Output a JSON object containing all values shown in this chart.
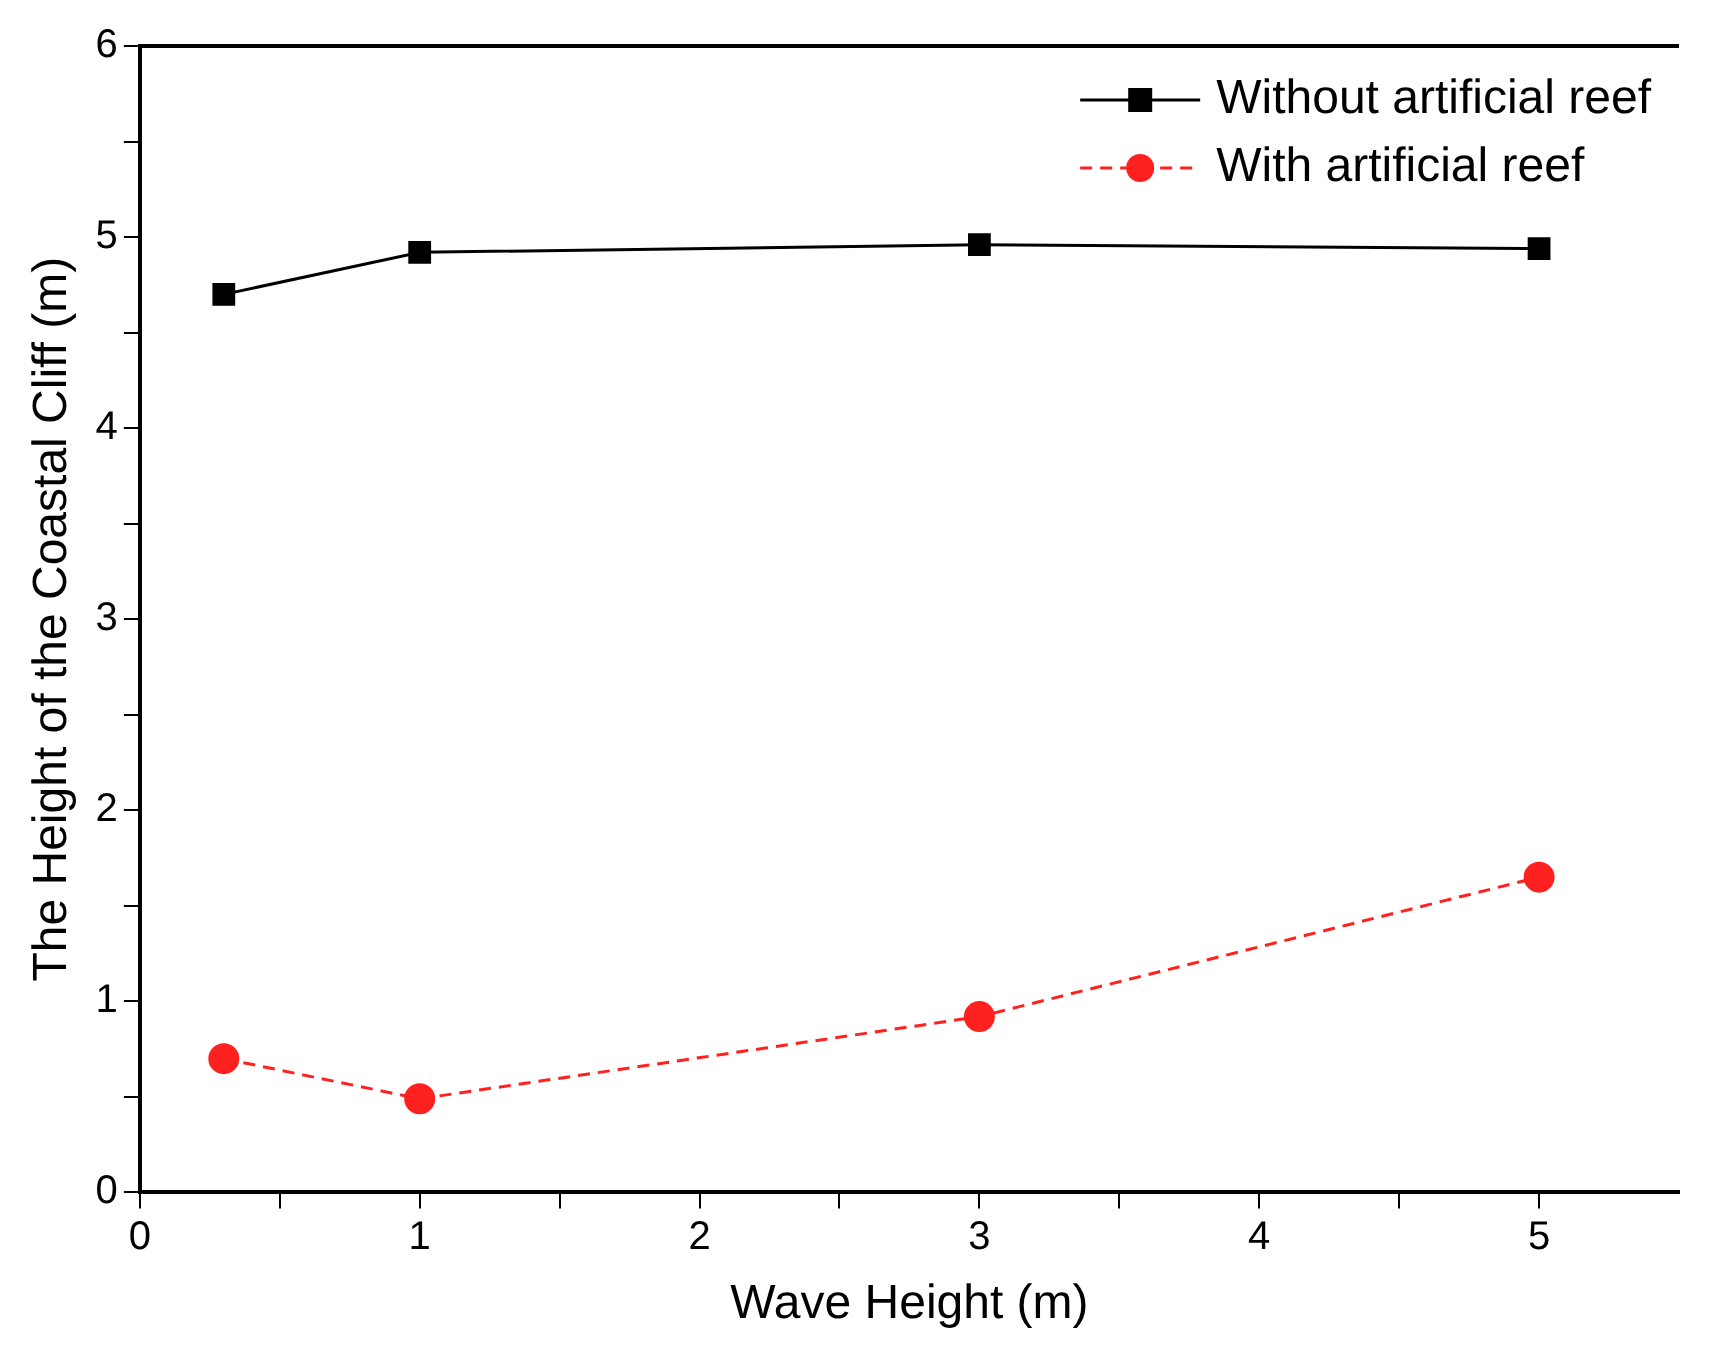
{
  "chart_data": {
    "type": "line",
    "xlabel": "Wave Height (m)",
    "ylabel": "The Height of the Coastal Cliff (m)",
    "x": [
      0.3,
      1,
      3,
      5
    ],
    "series": [
      {
        "name": "Without artificial reef",
        "color": "#000000",
        "values": [
          4.7,
          4.92,
          4.96,
          4.94
        ],
        "marker": "square",
        "line_style": "solid"
      },
      {
        "name": "With artificial reef",
        "color": "#ff2020",
        "values": [
          0.7,
          0.49,
          0.92,
          1.65
        ],
        "marker": "circle",
        "line_style": "dashed"
      }
    ],
    "xlim": [
      0,
      5.5
    ],
    "xticks": [
      0,
      {
        "value": 0.5,
        "label": null
      },
      1,
      {
        "value": 1.5,
        "label": null
      },
      2,
      {
        "value": 2.5,
        "label": null
      },
      3,
      {
        "value": 3.5,
        "label": null
      },
      4,
      {
        "value": 4.5,
        "label": null
      },
      5
    ],
    "ylim": [
      0,
      6
    ],
    "yticks": [
      0,
      {
        "value": 0.5,
        "label": null
      },
      1,
      {
        "value": 1.5,
        "label": null
      },
      2,
      {
        "value": 2.5,
        "label": null
      },
      3,
      {
        "value": 3.5,
        "label": null
      },
      4,
      {
        "value": 4.5,
        "label": null
      },
      5,
      {
        "value": 5.5,
        "label": null
      },
      6
    ],
    "grid": false,
    "legend": "top right"
  }
}
